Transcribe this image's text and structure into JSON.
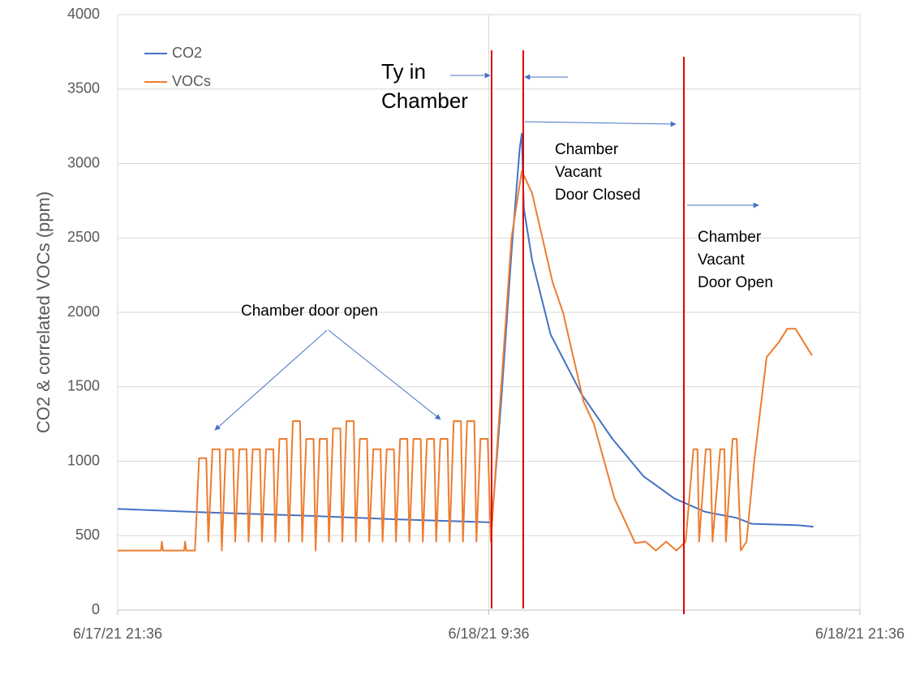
{
  "chart_data": {
    "type": "line",
    "ylabel": "CO2 & correlated VOCs (ppm)",
    "ylim": [
      0,
      4000
    ],
    "yticks": [
      0,
      500,
      1000,
      1500,
      2000,
      2500,
      3000,
      3500,
      4000
    ],
    "xlim": [
      "2021-06-17T21:36",
      "2021-06-18T21:36"
    ],
    "xticks": [
      {
        "value": "2021-06-17T21:36",
        "label": "6/17/21 21:36"
      },
      {
        "value": "2021-06-18T09:36",
        "label": "6/18/21 9:36"
      },
      {
        "value": "2021-06-18T21:36",
        "label": "6/18/21 21:36"
      }
    ],
    "grid": true,
    "legend": "upper left",
    "annotations": [
      {
        "text": [
          "Chamber door open"
        ]
      },
      {
        "text": [
          "Ty in",
          "Chamber"
        ]
      },
      {
        "text": [
          "Chamber",
          "Vacant",
          "Door Closed"
        ]
      },
      {
        "text": [
          "Chamber",
          "Vacant",
          "Door Open"
        ]
      }
    ],
    "series": [
      {
        "name": "CO2",
        "color": "#4472c4",
        "x": [
          "2021-06-17T21:36",
          "2021-06-18T00:36",
          "2021-06-18T03:36",
          "2021-06-18T06:36",
          "2021-06-18T09:36",
          "2021-06-18T09:42",
          "2021-06-18T10:00",
          "2021-06-18T10:20",
          "2021-06-18T10:36",
          "2021-06-18T10:40",
          "2021-06-18T10:44",
          "2021-06-18T11:00",
          "2021-06-18T11:36",
          "2021-06-18T12:36",
          "2021-06-18T13:36",
          "2021-06-18T14:36",
          "2021-06-18T15:36",
          "2021-06-18T16:36",
          "2021-06-18T17:36",
          "2021-06-18T18:06",
          "2021-06-18T19:36",
          "2021-06-18T20:06"
        ],
        "values": [
          680,
          655,
          635,
          610,
          590,
          590,
          1400,
          2400,
          3100,
          3200,
          2700,
          2350,
          1850,
          1450,
          1150,
          900,
          750,
          660,
          620,
          580,
          570,
          560
        ]
      },
      {
        "name": "VOCs",
        "color": "#ed7d31",
        "x": [
          "2021-06-17T21:36",
          "2021-06-17T23:00",
          "2021-06-17T23:02",
          "2021-06-17T23:04",
          "2021-06-17T23:45",
          "2021-06-17T23:47",
          "2021-06-17T23:49",
          "2021-06-18T00:06",
          "2021-06-18T00:14",
          "2021-06-18T00:28",
          "2021-06-18T00:32",
          "2021-06-18T00:40",
          "2021-06-18T00:54",
          "2021-06-18T00:58",
          "2021-06-18T01:06",
          "2021-06-18T01:20",
          "2021-06-18T01:24",
          "2021-06-18T01:32",
          "2021-06-18T01:46",
          "2021-06-18T01:50",
          "2021-06-18T01:58",
          "2021-06-18T02:12",
          "2021-06-18T02:16",
          "2021-06-18T02:24",
          "2021-06-18T02:38",
          "2021-06-18T02:42",
          "2021-06-18T02:50",
          "2021-06-18T03:04",
          "2021-06-18T03:08",
          "2021-06-18T03:16",
          "2021-06-18T03:30",
          "2021-06-18T03:34",
          "2021-06-18T03:42",
          "2021-06-18T03:56",
          "2021-06-18T04:00",
          "2021-06-18T04:08",
          "2021-06-18T04:22",
          "2021-06-18T04:26",
          "2021-06-18T04:34",
          "2021-06-18T04:48",
          "2021-06-18T04:52",
          "2021-06-18T05:00",
          "2021-06-18T05:14",
          "2021-06-18T05:18",
          "2021-06-18T05:26",
          "2021-06-18T05:40",
          "2021-06-18T05:44",
          "2021-06-18T05:52",
          "2021-06-18T06:06",
          "2021-06-18T06:10",
          "2021-06-18T06:18",
          "2021-06-18T06:32",
          "2021-06-18T06:36",
          "2021-06-18T06:44",
          "2021-06-18T06:58",
          "2021-06-18T07:02",
          "2021-06-18T07:10",
          "2021-06-18T07:24",
          "2021-06-18T07:28",
          "2021-06-18T07:36",
          "2021-06-18T07:50",
          "2021-06-18T07:54",
          "2021-06-18T08:02",
          "2021-06-18T08:16",
          "2021-06-18T08:20",
          "2021-06-18T08:28",
          "2021-06-18T08:42",
          "2021-06-18T08:46",
          "2021-06-18T08:54",
          "2021-06-18T09:08",
          "2021-06-18T09:12",
          "2021-06-18T09:20",
          "2021-06-18T09:34",
          "2021-06-18T09:40",
          "2021-06-18T10:00",
          "2021-06-18T10:20",
          "2021-06-18T10:40",
          "2021-06-18T11:00",
          "2021-06-18T11:20",
          "2021-06-18T11:40",
          "2021-06-18T12:00",
          "2021-06-18T12:20",
          "2021-06-18T12:40",
          "2021-06-18T13:00",
          "2021-06-18T13:20",
          "2021-06-18T13:40",
          "2021-06-18T14:00",
          "2021-06-18T14:20",
          "2021-06-18T14:40",
          "2021-06-18T15:00",
          "2021-06-18T15:20",
          "2021-06-18T15:40",
          "2021-06-18T15:58",
          "2021-06-18T16:13",
          "2021-06-18T16:21",
          "2021-06-18T16:24",
          "2021-06-18T16:37",
          "2021-06-18T16:46",
          "2021-06-18T16:50",
          "2021-06-18T17:05",
          "2021-06-18T17:13",
          "2021-06-18T17:16",
          "2021-06-18T17:29",
          "2021-06-18T17:37",
          "2021-06-18T17:45",
          "2021-06-18T17:56",
          "2021-06-18T18:11",
          "2021-06-18T18:35",
          "2021-06-18T18:59",
          "2021-06-18T19:15",
          "2021-06-18T19:31",
          "2021-06-18T19:47",
          "2021-06-18T20:03"
        ],
        "values": [
          400,
          400,
          460,
          400,
          400,
          460,
          400,
          400,
          1020,
          1020,
          460,
          1080,
          1080,
          400,
          1080,
          1080,
          460,
          1080,
          1080,
          460,
          1080,
          1080,
          460,
          1080,
          1080,
          460,
          1150,
          1150,
          460,
          1270,
          1270,
          460,
          1150,
          1150,
          400,
          1150,
          1150,
          460,
          1220,
          1220,
          460,
          1270,
          1270,
          460,
          1150,
          1150,
          460,
          1080,
          1080,
          460,
          1080,
          1080,
          460,
          1150,
          1150,
          460,
          1150,
          1150,
          460,
          1150,
          1150,
          460,
          1150,
          1150,
          460,
          1270,
          1270,
          460,
          1270,
          1270,
          460,
          1150,
          1150,
          460,
          1500,
          2500,
          2950,
          2800,
          2500,
          2200,
          2000,
          1700,
          1400,
          1250,
          1000,
          750,
          600,
          450,
          460,
          400,
          460,
          400,
          460,
          1080,
          1080,
          460,
          1080,
          1080,
          460,
          1080,
          1080,
          460,
          1150,
          1150,
          400,
          460,
          1000,
          1700,
          1800,
          1890,
          1890,
          1800,
          1710
        ]
      }
    ]
  }
}
